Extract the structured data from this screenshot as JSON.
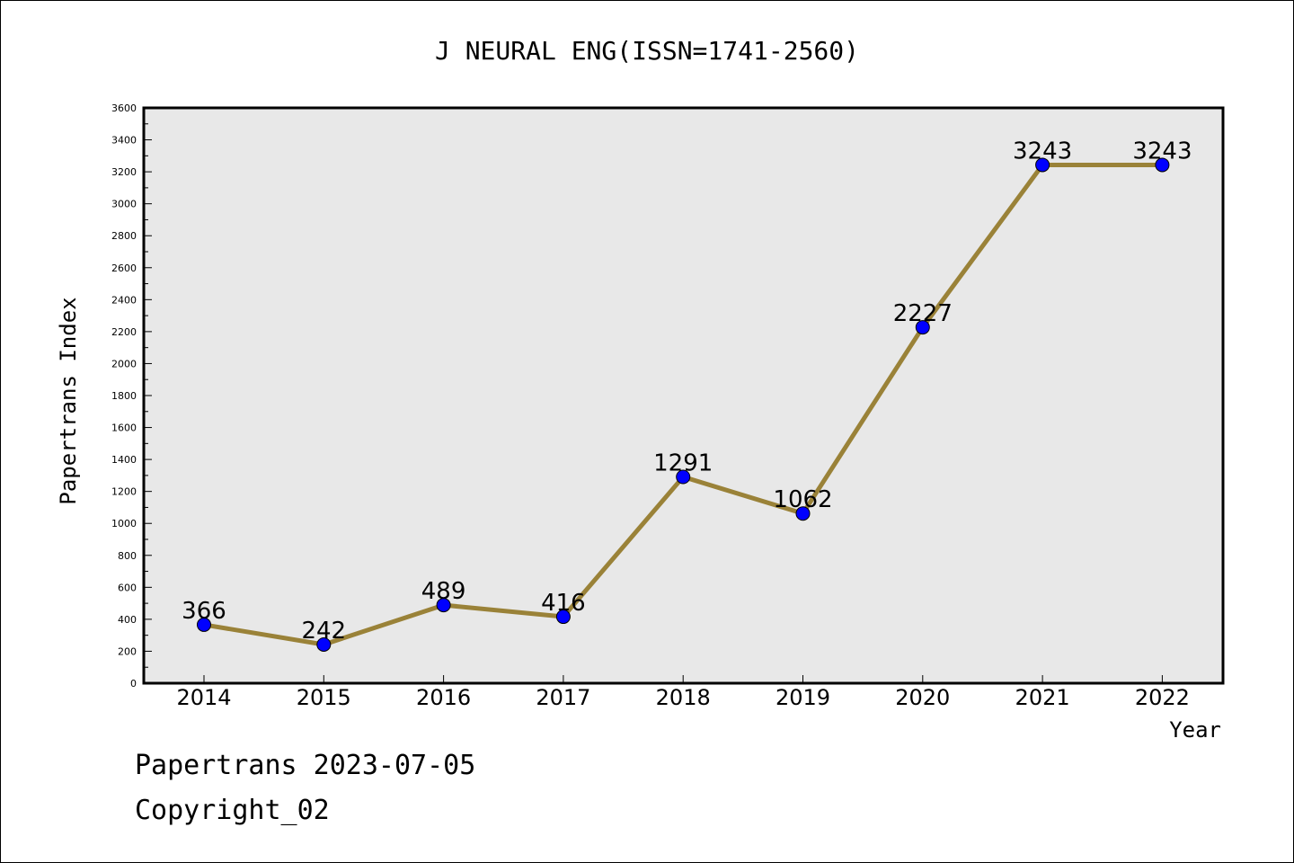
{
  "chart_data": {
    "type": "line",
    "title": "J NEURAL ENG(ISSN=1741-2560)",
    "xlabel": "Year",
    "ylabel": "Papertrans Index",
    "x": [
      "2014",
      "2015",
      "2016",
      "2017",
      "2018",
      "2019",
      "2020",
      "2021",
      "2022"
    ],
    "series": [
      {
        "values": [
          366,
          242,
          489,
          416,
          1291,
          1062,
          2227,
          3243,
          3243
        ],
        "labels": [
          "366",
          "242",
          "489",
          "416",
          "1291",
          "1062",
          "2227",
          "3243",
          "3243"
        ]
      }
    ],
    "ylim": [
      0,
      3600
    ],
    "yticks": [
      "0",
      "200",
      "400",
      "600",
      "800",
      "1000",
      "1200",
      "1400",
      "1600",
      "1800",
      "2000",
      "2200",
      "2400",
      "2600",
      "2800",
      "3000",
      "3200",
      "3400",
      "3600"
    ],
    "grid": false,
    "legend": "none",
    "colors": {
      "plot_background": "#e8e8e8",
      "line": "#9a8238",
      "marker": "#0000ff"
    }
  },
  "footer": {
    "line1": "Papertrans 2023-07-05",
    "line2": "Copyright_02"
  }
}
